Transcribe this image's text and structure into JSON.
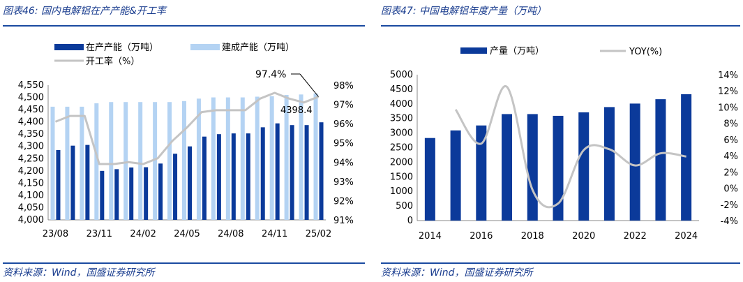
{
  "left_title": "图表46:  国内电解铝在产产能&开工率",
  "right_title": "图表47:  中国电解铝年度产量（万吨）",
  "left_source": "资料来源：Wind，国盛证券研究所",
  "right_source": "资料来源：Wind，国盛证券研究所",
  "colors": {
    "dark_bar": "#0b3a9a",
    "light_bar": "#b4d3f3",
    "line": "#c4c4c4",
    "rule": "#1a4aa0",
    "title": "#1a3d8f"
  },
  "chart_data": [
    {
      "type": "bar",
      "legend": {
        "items": [
          "在产产能（万吨）",
          "建成产能（万吨）",
          "开工率（%）"
        ]
      },
      "categories": [
        "23/08",
        "23/09",
        "23/10",
        "23/11",
        "23/12",
        "24/01",
        "24/02",
        "24/03",
        "24/04",
        "24/05",
        "24/06",
        "24/07",
        "24/08",
        "24/09",
        "24/10",
        "24/11",
        "24/12",
        "25/01",
        "25/02"
      ],
      "x_tick_labels": [
        "23/08",
        "23/11",
        "24/02",
        "24/05",
        "24/08",
        "24/11",
        "25/02"
      ],
      "series": [
        {
          "name": "在产产能（万吨）",
          "kind": "bar",
          "axis": "left",
          "values": [
            4285,
            4303,
            4306,
            4200,
            4207,
            4214,
            4215,
            4230,
            4270,
            4300,
            4340,
            4350,
            4353,
            4353,
            4378,
            4394,
            4387,
            4387,
            4398.4
          ]
        },
        {
          "name": "建成产能（万吨）",
          "kind": "bar",
          "axis": "left",
          "values": [
            4462,
            4462,
            4462,
            4476,
            4481,
            4481,
            4481,
            4481,
            4481,
            4485,
            4495,
            4500,
            4500,
            4500,
            4503,
            4505,
            4510,
            4512,
            4516
          ]
        },
        {
          "name": "开工率（%）",
          "kind": "line",
          "axis": "right",
          "values": [
            96.1,
            96.4,
            96.4,
            93.9,
            93.9,
            94.0,
            93.9,
            94.2,
            95.1,
            95.8,
            96.6,
            96.7,
            96.7,
            96.7,
            97.3,
            97.6,
            97.3,
            97.1,
            97.4
          ]
        }
      ],
      "y_left": {
        "min": 4000,
        "max": 4550,
        "ticks": [
          "4,000",
          "4,050",
          "4,100",
          "4,150",
          "4,200",
          "4,250",
          "4,300",
          "4,350",
          "4,400",
          "4,450",
          "4,500",
          "4,550"
        ]
      },
      "y_right": {
        "min": 91,
        "max": 98,
        "ticks": [
          "91%",
          "92%",
          "93%",
          "94%",
          "95%",
          "96%",
          "97%",
          "98%"
        ]
      },
      "annotations": [
        "97.4%",
        "4398.4"
      ]
    },
    {
      "type": "bar",
      "legend": {
        "items": [
          "产量（万吨）",
          "YOY(%)"
        ]
      },
      "categories": [
        "2014",
        "2015",
        "2016",
        "2017",
        "2018",
        "2019",
        "2020",
        "2021",
        "2022",
        "2023",
        "2024"
      ],
      "x_tick_labels": [
        "2014",
        "2016",
        "2018",
        "2020",
        "2022",
        "2024"
      ],
      "series": [
        {
          "name": "产量（万吨）",
          "kind": "bar",
          "axis": "left",
          "values": [
            2830,
            3090,
            3260,
            3650,
            3650,
            3590,
            3710,
            3890,
            4010,
            4160,
            4330
          ]
        },
        {
          "name": "YOY(%)",
          "kind": "line",
          "axis": "right",
          "values": [
            null,
            9.7,
            5.5,
            12.5,
            -0.2,
            -1.9,
            4.7,
            4.8,
            2.8,
            4.3,
            3.9
          ]
        }
      ],
      "y_left": {
        "min": 0,
        "max": 5000,
        "ticks": [
          "0",
          "500",
          "1000",
          "1500",
          "2000",
          "2500",
          "3000",
          "3500",
          "4000",
          "4500",
          "5000"
        ]
      },
      "y_right": {
        "min": -4,
        "max": 14,
        "ticks": [
          "-4%",
          "-2%",
          "0%",
          "2%",
          "4%",
          "6%",
          "8%",
          "10%",
          "12%",
          "14%"
        ]
      }
    }
  ]
}
